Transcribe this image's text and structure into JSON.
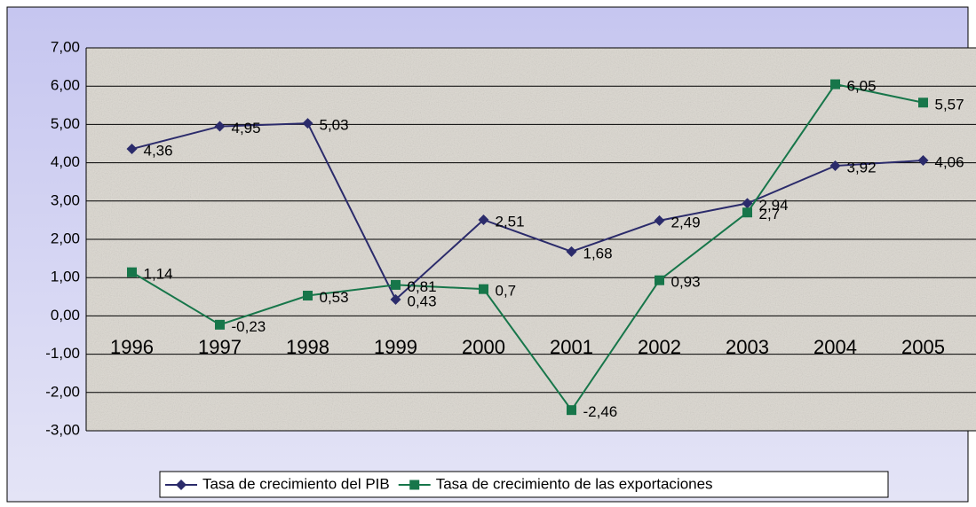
{
  "chart_data": {
    "type": "line",
    "categories": [
      "1996",
      "1997",
      "1998",
      "1999",
      "2000",
      "2001",
      "2002",
      "2003",
      "2004",
      "2005"
    ],
    "series": [
      {
        "name": "Tasa de crecimiento del PIB",
        "color": "#2b2b6b",
        "marker": "diamond",
        "values": [
          4.36,
          4.95,
          5.03,
          0.43,
          2.51,
          1.68,
          2.49,
          2.94,
          3.92,
          4.06
        ],
        "value_labels": [
          "4,36",
          "4,95",
          "5,03",
          "0,43",
          "2,51",
          "1,68",
          "2,49",
          "2,94",
          "3,92",
          "4,06"
        ]
      },
      {
        "name": "Tasa de crecimiento de las exportaciones",
        "color": "#17764a",
        "marker": "square",
        "values": [
          1.14,
          -0.23,
          0.53,
          0.81,
          0.7,
          -2.46,
          0.93,
          2.7,
          6.05,
          5.57
        ],
        "value_labels": [
          "1,14",
          "-0,23",
          "0,53",
          "0,81",
          "0,7",
          "-2,46",
          "0,93",
          "2,7",
          "6,05",
          "5,57"
        ]
      }
    ],
    "ylim": [
      -3,
      7
    ],
    "yticks": [
      {
        "value": -3,
        "label": "-3,00"
      },
      {
        "value": -2,
        "label": "-2,00"
      },
      {
        "value": -1,
        "label": "-1,00"
      },
      {
        "value": 0,
        "label": "0,00"
      },
      {
        "value": 1,
        "label": "1,00"
      },
      {
        "value": 2,
        "label": "2,00"
      },
      {
        "value": 3,
        "label": "3,00"
      },
      {
        "value": 4,
        "label": "4,00"
      },
      {
        "value": 5,
        "label": "5,00"
      },
      {
        "value": 6,
        "label": "6,00"
      },
      {
        "value": 7,
        "label": "7,00"
      }
    ],
    "grid": true,
    "legend": "bottom"
  }
}
